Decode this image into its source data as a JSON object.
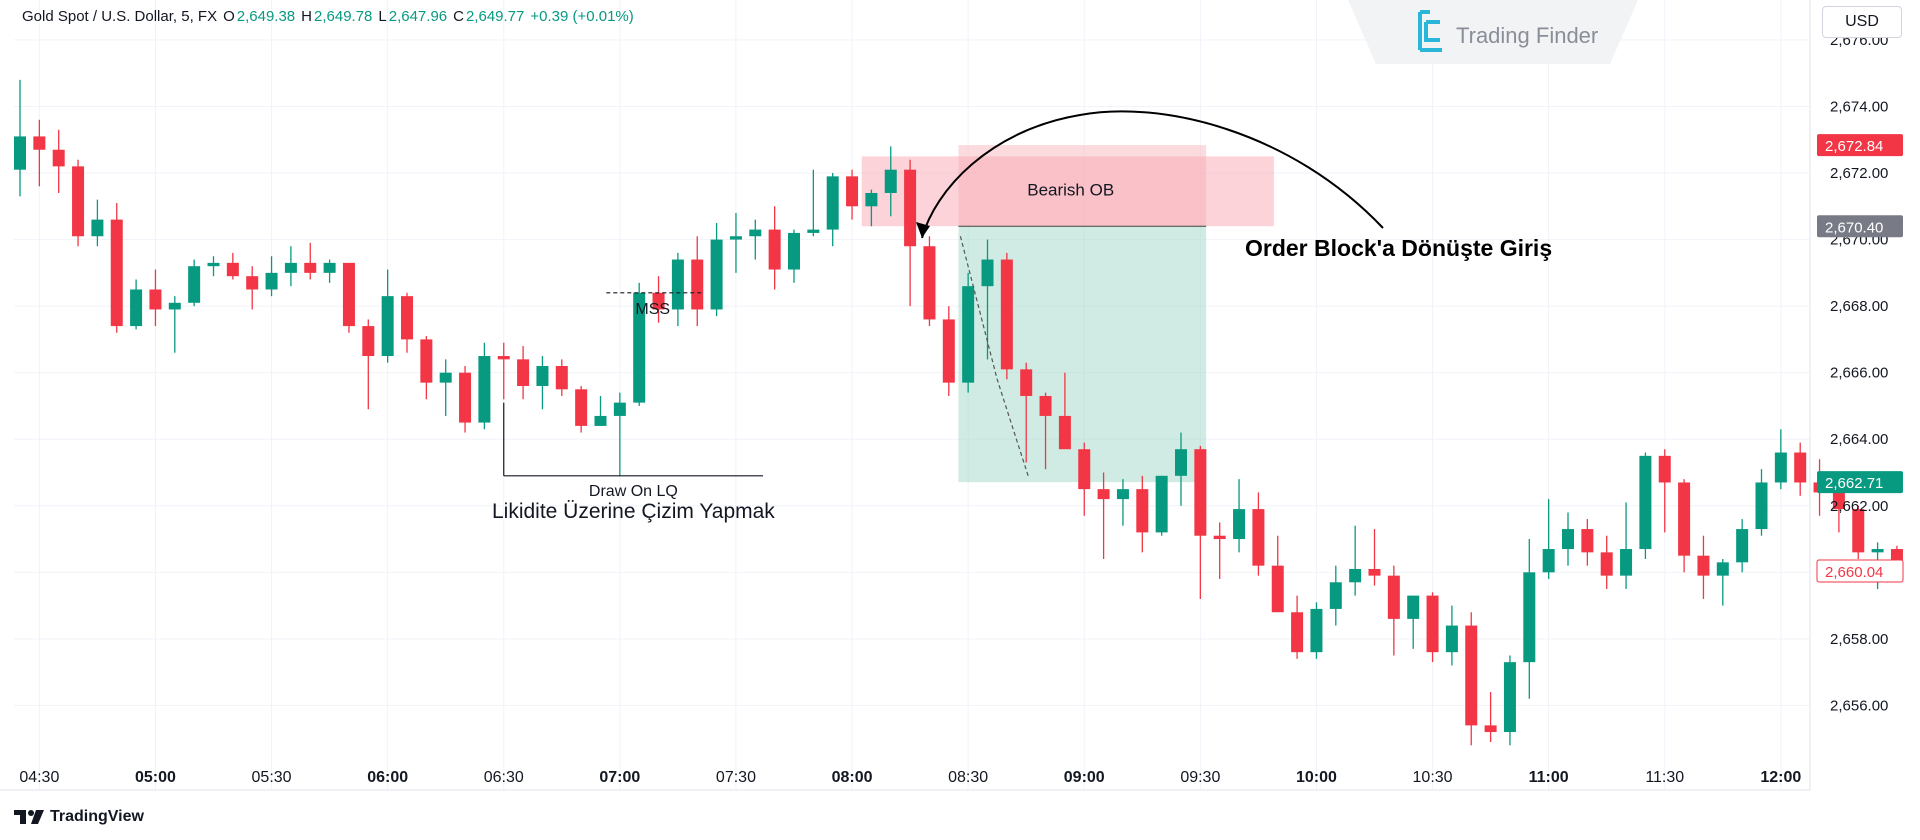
{
  "header": {
    "symbol": "Gold Spot / U.S. Dollar, 5, FX",
    "o_label": "O",
    "o_value": "2,649.38",
    "h_label": "H",
    "h_value": "2,649.78",
    "l_label": "L",
    "l_value": "2,647.96",
    "c_label": "C",
    "c_value": "2,649.77",
    "change": "+0.39 (+0.01%)"
  },
  "currency": "USD",
  "logo": {
    "name": "Trading Finder",
    "icon": "trading-finder-logo-icon"
  },
  "brand": {
    "name": "TradingView",
    "icon": "tradingview-logo-icon"
  },
  "colors": {
    "up": "#089981",
    "down": "#f23645",
    "grid": "#f0f3fa",
    "ob_fill": "#f7a8b1",
    "target_fill": "#9fd8c8",
    "stop_fill": "#f9b7be"
  },
  "chart_data": {
    "type": "candlestick",
    "ylim": [
      2654.6,
      2677.2
    ],
    "y_ticks": [
      2656,
      2658,
      2660,
      2662,
      2664,
      2666,
      2668,
      2670,
      2672,
      2674,
      2676
    ],
    "y_tick_labels": [
      "2,656.00",
      "2,658.00",
      "2,660.00",
      "2,662.00",
      "2,664.00",
      "2,666.00",
      "2,668.00",
      "2,670.00",
      "2,672.00",
      "2,674.00",
      "2,676.00"
    ],
    "x_ticks": [
      {
        "i": 1,
        "label": "04:30",
        "bold": false
      },
      {
        "i": 7,
        "label": "05:00",
        "bold": true
      },
      {
        "i": 13,
        "label": "05:30",
        "bold": false
      },
      {
        "i": 19,
        "label": "06:00",
        "bold": true
      },
      {
        "i": 25,
        "label": "06:30",
        "bold": false
      },
      {
        "i": 31,
        "label": "07:00",
        "bold": true
      },
      {
        "i": 37,
        "label": "07:30",
        "bold": false
      },
      {
        "i": 43,
        "label": "08:00",
        "bold": true
      },
      {
        "i": 49,
        "label": "08:30",
        "bold": false
      },
      {
        "i": 55,
        "label": "09:00",
        "bold": true
      },
      {
        "i": 61,
        "label": "09:30",
        "bold": false
      },
      {
        "i": 67,
        "label": "10:00",
        "bold": true
      },
      {
        "i": 73,
        "label": "10:30",
        "bold": false
      },
      {
        "i": 79,
        "label": "11:00",
        "bold": true
      },
      {
        "i": 85,
        "label": "11:30",
        "bold": false
      },
      {
        "i": 91,
        "label": "12:00",
        "bold": true
      }
    ],
    "candles": [
      {
        "o": 2672.1,
        "h": 2674.8,
        "l": 2671.3,
        "c": 2673.1
      },
      {
        "o": 2673.1,
        "h": 2673.6,
        "l": 2671.6,
        "c": 2672.7
      },
      {
        "o": 2672.7,
        "h": 2673.3,
        "l": 2671.4,
        "c": 2672.2
      },
      {
        "o": 2672.2,
        "h": 2672.4,
        "l": 2669.8,
        "c": 2670.1
      },
      {
        "o": 2670.1,
        "h": 2671.2,
        "l": 2669.8,
        "c": 2670.6
      },
      {
        "o": 2670.6,
        "h": 2671.1,
        "l": 2667.2,
        "c": 2667.4
      },
      {
        "o": 2667.4,
        "h": 2668.8,
        "l": 2667.3,
        "c": 2668.5
      },
      {
        "o": 2668.5,
        "h": 2669.1,
        "l": 2667.4,
        "c": 2667.9
      },
      {
        "o": 2667.9,
        "h": 2668.3,
        "l": 2666.6,
        "c": 2668.1
      },
      {
        "o": 2668.1,
        "h": 2669.4,
        "l": 2668.0,
        "c": 2669.2
      },
      {
        "o": 2669.2,
        "h": 2669.5,
        "l": 2668.9,
        "c": 2669.3
      },
      {
        "o": 2669.3,
        "h": 2669.6,
        "l": 2668.8,
        "c": 2668.9
      },
      {
        "o": 2668.9,
        "h": 2669.2,
        "l": 2667.9,
        "c": 2668.5
      },
      {
        "o": 2668.5,
        "h": 2669.5,
        "l": 2668.3,
        "c": 2669.0
      },
      {
        "o": 2669.0,
        "h": 2669.8,
        "l": 2668.6,
        "c": 2669.3
      },
      {
        "o": 2669.3,
        "h": 2669.9,
        "l": 2668.8,
        "c": 2669.0
      },
      {
        "o": 2669.0,
        "h": 2669.4,
        "l": 2668.7,
        "c": 2669.3
      },
      {
        "o": 2669.3,
        "h": 2669.3,
        "l": 2667.2,
        "c": 2667.4
      },
      {
        "o": 2667.4,
        "h": 2667.6,
        "l": 2664.9,
        "c": 2666.5
      },
      {
        "o": 2666.5,
        "h": 2669.1,
        "l": 2666.3,
        "c": 2668.3
      },
      {
        "o": 2668.3,
        "h": 2668.4,
        "l": 2666.6,
        "c": 2667.0
      },
      {
        "o": 2667.0,
        "h": 2667.1,
        "l": 2665.2,
        "c": 2665.7
      },
      {
        "o": 2665.7,
        "h": 2666.4,
        "l": 2664.7,
        "c": 2666.0
      },
      {
        "o": 2666.0,
        "h": 2666.2,
        "l": 2664.2,
        "c": 2664.5
      },
      {
        "o": 2664.5,
        "h": 2666.9,
        "l": 2664.3,
        "c": 2666.5
      },
      {
        "o": 2666.5,
        "h": 2666.9,
        "l": 2665.2,
        "c": 2666.4
      },
      {
        "o": 2666.4,
        "h": 2666.8,
        "l": 2665.2,
        "c": 2665.6
      },
      {
        "o": 2665.6,
        "h": 2666.5,
        "l": 2664.9,
        "c": 2666.2
      },
      {
        "o": 2666.2,
        "h": 2666.4,
        "l": 2665.3,
        "c": 2665.5
      },
      {
        "o": 2665.5,
        "h": 2665.6,
        "l": 2664.2,
        "c": 2664.4
      },
      {
        "o": 2664.4,
        "h": 2665.3,
        "l": 2664.4,
        "c": 2664.7
      },
      {
        "o": 2664.7,
        "h": 2665.4,
        "l": 2662.9,
        "c": 2665.1
      },
      {
        "o": 2665.1,
        "h": 2668.7,
        "l": 2665.0,
        "c": 2668.4
      },
      {
        "o": 2668.4,
        "h": 2668.9,
        "l": 2667.5,
        "c": 2667.9
      },
      {
        "o": 2667.9,
        "h": 2669.6,
        "l": 2667.4,
        "c": 2669.4
      },
      {
        "o": 2669.4,
        "h": 2670.1,
        "l": 2667.4,
        "c": 2667.9
      },
      {
        "o": 2667.9,
        "h": 2670.5,
        "l": 2667.7,
        "c": 2670.0
      },
      {
        "o": 2670.0,
        "h": 2670.8,
        "l": 2669.0,
        "c": 2670.1
      },
      {
        "o": 2670.1,
        "h": 2670.6,
        "l": 2669.4,
        "c": 2670.3
      },
      {
        "o": 2670.3,
        "h": 2671.0,
        "l": 2668.5,
        "c": 2669.1
      },
      {
        "o": 2669.1,
        "h": 2670.3,
        "l": 2668.7,
        "c": 2670.2
      },
      {
        "o": 2670.2,
        "h": 2672.1,
        "l": 2670.1,
        "c": 2670.3
      },
      {
        "o": 2670.3,
        "h": 2672.0,
        "l": 2669.8,
        "c": 2671.9
      },
      {
        "o": 2671.9,
        "h": 2672.1,
        "l": 2670.6,
        "c": 2671.0
      },
      {
        "o": 2671.0,
        "h": 2671.5,
        "l": 2670.4,
        "c": 2671.4
      },
      {
        "o": 2671.4,
        "h": 2672.8,
        "l": 2670.7,
        "c": 2672.1
      },
      {
        "o": 2672.1,
        "h": 2672.4,
        "l": 2668.0,
        "c": 2669.8
      },
      {
        "o": 2669.8,
        "h": 2670.1,
        "l": 2667.4,
        "c": 2667.6
      },
      {
        "o": 2667.6,
        "h": 2668.0,
        "l": 2665.3,
        "c": 2665.7
      },
      {
        "o": 2665.7,
        "h": 2669.0,
        "l": 2665.4,
        "c": 2668.6
      },
      {
        "o": 2668.6,
        "h": 2670.0,
        "l": 2666.4,
        "c": 2669.4
      },
      {
        "o": 2669.4,
        "h": 2669.6,
        "l": 2665.8,
        "c": 2666.1
      },
      {
        "o": 2666.1,
        "h": 2666.3,
        "l": 2663.3,
        "c": 2665.3
      },
      {
        "o": 2665.3,
        "h": 2665.4,
        "l": 2663.1,
        "c": 2664.7
      },
      {
        "o": 2664.7,
        "h": 2666.0,
        "l": 2663.9,
        "c": 2663.7
      },
      {
        "o": 2663.7,
        "h": 2663.9,
        "l": 2661.7,
        "c": 2662.5
      },
      {
        "o": 2662.5,
        "h": 2663.0,
        "l": 2660.4,
        "c": 2662.2
      },
      {
        "o": 2662.2,
        "h": 2662.8,
        "l": 2661.4,
        "c": 2662.5
      },
      {
        "o": 2662.5,
        "h": 2662.9,
        "l": 2660.6,
        "c": 2661.2
      },
      {
        "o": 2661.2,
        "h": 2662.9,
        "l": 2661.1,
        "c": 2662.9
      },
      {
        "o": 2662.9,
        "h": 2664.2,
        "l": 2662.0,
        "c": 2663.7
      },
      {
        "o": 2663.7,
        "h": 2663.8,
        "l": 2659.2,
        "c": 2661.1
      },
      {
        "o": 2661.1,
        "h": 2661.5,
        "l": 2659.8,
        "c": 2661.0
      },
      {
        "o": 2661.0,
        "h": 2662.8,
        "l": 2660.6,
        "c": 2661.9
      },
      {
        "o": 2661.9,
        "h": 2662.4,
        "l": 2659.9,
        "c": 2660.2
      },
      {
        "o": 2660.2,
        "h": 2661.1,
        "l": 2658.9,
        "c": 2658.8
      },
      {
        "o": 2658.8,
        "h": 2659.3,
        "l": 2657.4,
        "c": 2657.6
      },
      {
        "o": 2657.6,
        "h": 2659.1,
        "l": 2657.4,
        "c": 2658.9
      },
      {
        "o": 2658.9,
        "h": 2660.2,
        "l": 2658.4,
        "c": 2659.7
      },
      {
        "o": 2659.7,
        "h": 2661.4,
        "l": 2659.3,
        "c": 2660.1
      },
      {
        "o": 2660.1,
        "h": 2661.3,
        "l": 2659.6,
        "c": 2659.9
      },
      {
        "o": 2659.9,
        "h": 2660.2,
        "l": 2657.5,
        "c": 2658.6
      },
      {
        "o": 2658.6,
        "h": 2659.3,
        "l": 2657.7,
        "c": 2659.3
      },
      {
        "o": 2659.3,
        "h": 2659.4,
        "l": 2657.3,
        "c": 2657.6
      },
      {
        "o": 2657.6,
        "h": 2659.0,
        "l": 2657.2,
        "c": 2658.4
      },
      {
        "o": 2658.4,
        "h": 2658.8,
        "l": 2654.8,
        "c": 2655.4
      },
      {
        "o": 2655.4,
        "h": 2656.4,
        "l": 2654.9,
        "c": 2655.2
      },
      {
        "o": 2655.2,
        "h": 2657.5,
        "l": 2654.8,
        "c": 2657.3
      },
      {
        "o": 2657.3,
        "h": 2661.0,
        "l": 2656.2,
        "c": 2660.0
      },
      {
        "o": 2660.0,
        "h": 2662.2,
        "l": 2659.8,
        "c": 2660.7
      },
      {
        "o": 2660.7,
        "h": 2661.8,
        "l": 2660.2,
        "c": 2661.3
      },
      {
        "o": 2661.3,
        "h": 2661.6,
        "l": 2660.2,
        "c": 2660.6
      },
      {
        "o": 2660.6,
        "h": 2661.1,
        "l": 2659.5,
        "c": 2659.9
      },
      {
        "o": 2659.9,
        "h": 2662.1,
        "l": 2659.5,
        "c": 2660.7
      },
      {
        "o": 2660.7,
        "h": 2663.6,
        "l": 2660.4,
        "c": 2663.5
      },
      {
        "o": 2663.5,
        "h": 2663.7,
        "l": 2661.2,
        "c": 2662.7
      },
      {
        "o": 2662.7,
        "h": 2662.8,
        "l": 2660.0,
        "c": 2660.5
      },
      {
        "o": 2660.5,
        "h": 2661.1,
        "l": 2659.2,
        "c": 2659.9
      },
      {
        "o": 2659.9,
        "h": 2660.4,
        "l": 2659.0,
        "c": 2660.3
      },
      {
        "o": 2660.3,
        "h": 2661.6,
        "l": 2660.0,
        "c": 2661.3
      },
      {
        "o": 2661.3,
        "h": 2663.1,
        "l": 2661.1,
        "c": 2662.7
      },
      {
        "o": 2662.7,
        "h": 2664.3,
        "l": 2662.5,
        "c": 2663.6
      },
      {
        "o": 2663.6,
        "h": 2663.9,
        "l": 2662.3,
        "c": 2662.7
      },
      {
        "o": 2662.7,
        "h": 2663.4,
        "l": 2661.7,
        "c": 2662.4
      },
      {
        "o": 2662.4,
        "h": 2662.6,
        "l": 2661.2,
        "c": 2661.9
      },
      {
        "o": 2661.9,
        "h": 2662.0,
        "l": 2660.4,
        "c": 2660.6
      },
      {
        "o": 2660.6,
        "h": 2660.9,
        "l": 2659.5,
        "c": 2660.7
      },
      {
        "o": 2660.7,
        "h": 2660.8,
        "l": 2659.8,
        "c": 2660.0
      }
    ],
    "price_labels": [
      {
        "value": 2672.84,
        "text": "2,672.84",
        "bg": "#f23645",
        "fg": "#ffffff"
      },
      {
        "value": 2670.4,
        "text": "2,670.40",
        "bg": "#787b86",
        "fg": "#ffffff"
      },
      {
        "value": 2662.71,
        "text": "2,662.71",
        "bg": "#089981",
        "fg": "#ffffff"
      },
      {
        "value": 2660.04,
        "text": "2,660.04",
        "bg": "#ffffff",
        "fg": "#f23645"
      }
    ],
    "zones": [
      {
        "name": "stop-zone",
        "i_from": 48.5,
        "i_to": 61.3,
        "y_from": 2670.4,
        "y_to": 2672.84,
        "fill": "#f9b7be"
      },
      {
        "name": "target-zone",
        "i_from": 48.5,
        "i_to": 61.3,
        "y_from": 2662.71,
        "y_to": 2670.4,
        "fill": "#9fd8c8"
      },
      {
        "name": "order-block",
        "i_from": 43.5,
        "i_to": 64.8,
        "y_from": 2670.4,
        "y_to": 2672.5,
        "fill": "#f7a8b1"
      }
    ],
    "annotations": {
      "bearish_ob": "Bearish OB",
      "mss": "MSS",
      "draw_on_lq": "Draw On LQ",
      "likidite": "Likidite Üzerine Çizim Yapmak",
      "entry": "Order Block'a Dönüşte Giriş"
    },
    "mss_level": 2668.4,
    "lq_level": 2662.9
  }
}
